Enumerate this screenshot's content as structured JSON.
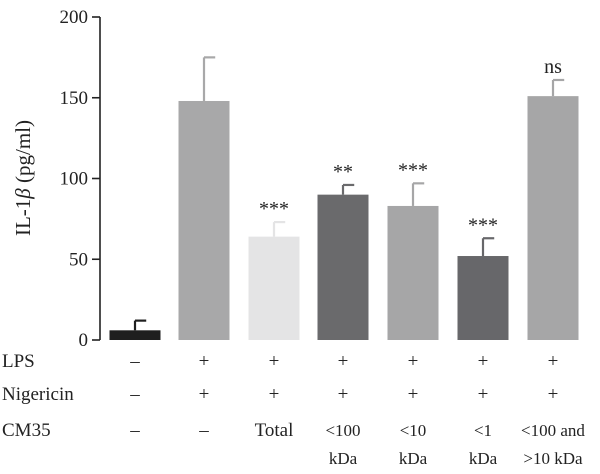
{
  "chart_data": {
    "type": "bar",
    "ylabel": "IL-1",
    "ylabel_symbol": "β",
    "ylabel_unit": " (pg/ml)",
    "ylim": [
      0,
      200
    ],
    "yticks": [
      "0",
      "50",
      "100",
      "150",
      "200"
    ],
    "grid": false,
    "values": [
      6,
      148,
      64,
      90,
      83,
      52,
      151
    ],
    "errors": [
      6,
      27,
      9,
      6,
      14,
      11,
      10
    ],
    "colors": [
      "#1f1f1f",
      "#a8a8a9",
      "#e4e4e5",
      "#6a6a6c",
      "#a6a6a7",
      "#67676a",
      "#a6a6a7"
    ],
    "significance": [
      "",
      "",
      "***",
      "**",
      "***",
      "***",
      "ns"
    ]
  },
  "conditions": {
    "row_labels": [
      "LPS",
      "Nigericin",
      "CM35"
    ],
    "lps": [
      "–",
      "+",
      "+",
      "+",
      "+",
      "+",
      "+"
    ],
    "nigericin": [
      "–",
      "+",
      "+",
      "+",
      "+",
      "+",
      "+"
    ],
    "cm35": [
      [
        "–"
      ],
      [
        "–"
      ],
      [
        "Total"
      ],
      [
        "<100",
        "kDa"
      ],
      [
        "<10",
        "kDa"
      ],
      [
        "<1",
        "kDa"
      ],
      [
        "<100 and",
        ">10 kDa"
      ]
    ]
  }
}
